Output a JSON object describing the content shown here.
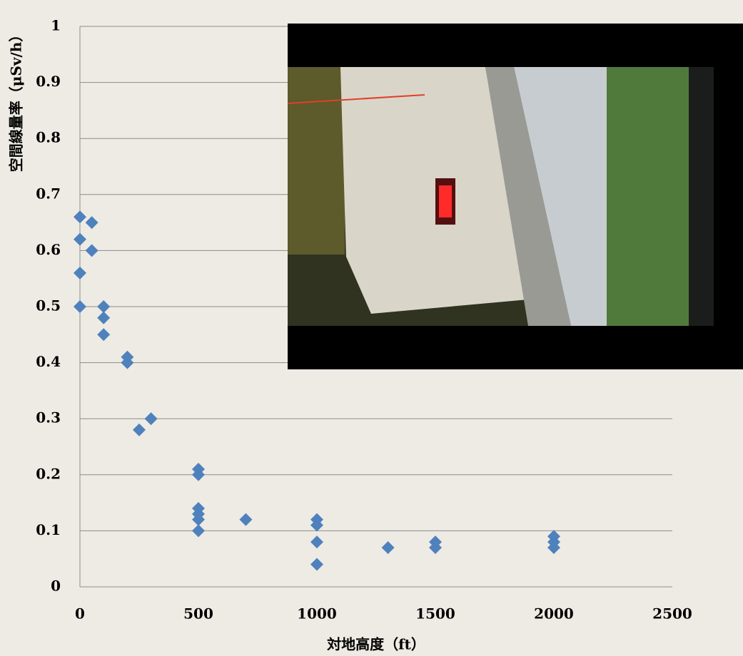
{
  "chart_data": {
    "type": "scatter",
    "x_label": "対地高度（ft）",
    "y_label": "空間線量率（μSv/h）",
    "x": [
      0,
      0,
      0,
      0,
      50,
      50,
      100,
      100,
      100,
      200,
      200,
      250,
      300,
      500,
      500,
      500,
      500,
      500,
      500,
      700,
      1000,
      1000,
      1000,
      1000,
      1300,
      1500,
      1500,
      2000,
      2000,
      2000
    ],
    "values": [
      0.66,
      0.62,
      0.56,
      0.5,
      0.65,
      0.6,
      0.5,
      0.48,
      0.45,
      0.41,
      0.4,
      0.28,
      0.3,
      0.21,
      0.2,
      0.14,
      0.13,
      0.12,
      0.1,
      0.12,
      0.12,
      0.11,
      0.08,
      0.04,
      0.07,
      0.08,
      0.07,
      0.09,
      0.08,
      0.07
    ],
    "color": "#4f81bd",
    "xlim": [
      0,
      2500
    ],
    "xticks": [
      0,
      500,
      1000,
      1500,
      2000,
      2500
    ],
    "ylim": [
      0,
      1
    ],
    "yticks": [
      0,
      0.1,
      0.2,
      0.3,
      0.4,
      0.5,
      0.6,
      0.7,
      0.8,
      0.9,
      1
    ],
    "grid": true
  }
}
